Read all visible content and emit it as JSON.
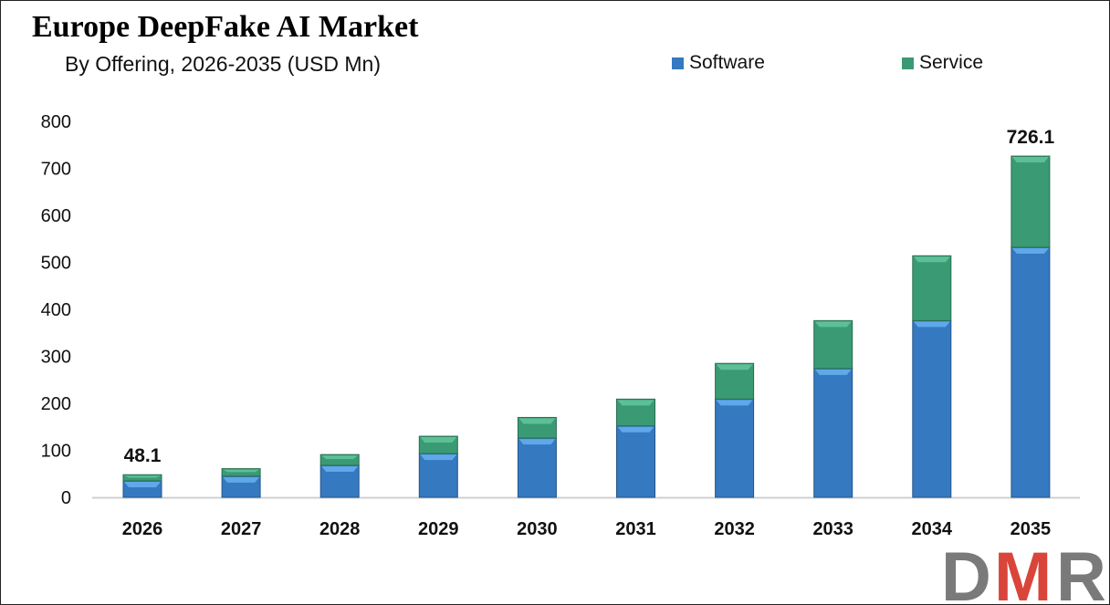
{
  "chart_data": {
    "type": "bar",
    "stacked": true,
    "title": "Europe DeepFake AI Market",
    "subtitle": "By Offering, 2026-2035 (USD Mn)",
    "categories": [
      "2026",
      "2027",
      "2028",
      "2029",
      "2030",
      "2031",
      "2032",
      "2033",
      "2034",
      "2035"
    ],
    "series": [
      {
        "name": "Software",
        "color": "#3579C0",
        "values": [
          35,
          45,
          68,
          93,
          126,
          152,
          209,
          274,
          376,
          532
        ]
      },
      {
        "name": "Service",
        "color": "#3A9A73",
        "values": [
          13.1,
          16,
          23,
          37,
          44,
          57,
          76,
          102,
          138,
          194.1
        ]
      }
    ],
    "data_labels": {
      "2026": "48.1",
      "2035": "726.1"
    },
    "yticks": [
      "0",
      "100",
      "200",
      "300",
      "400",
      "500",
      "600",
      "700",
      "800"
    ],
    "ylim": [
      0,
      800
    ],
    "grid": false,
    "legend": "top-right",
    "xlabel": "",
    "ylabel": ""
  },
  "logo": {
    "text": "DMR",
    "colors": [
      "#7a7a7a",
      "#d9453a"
    ]
  }
}
